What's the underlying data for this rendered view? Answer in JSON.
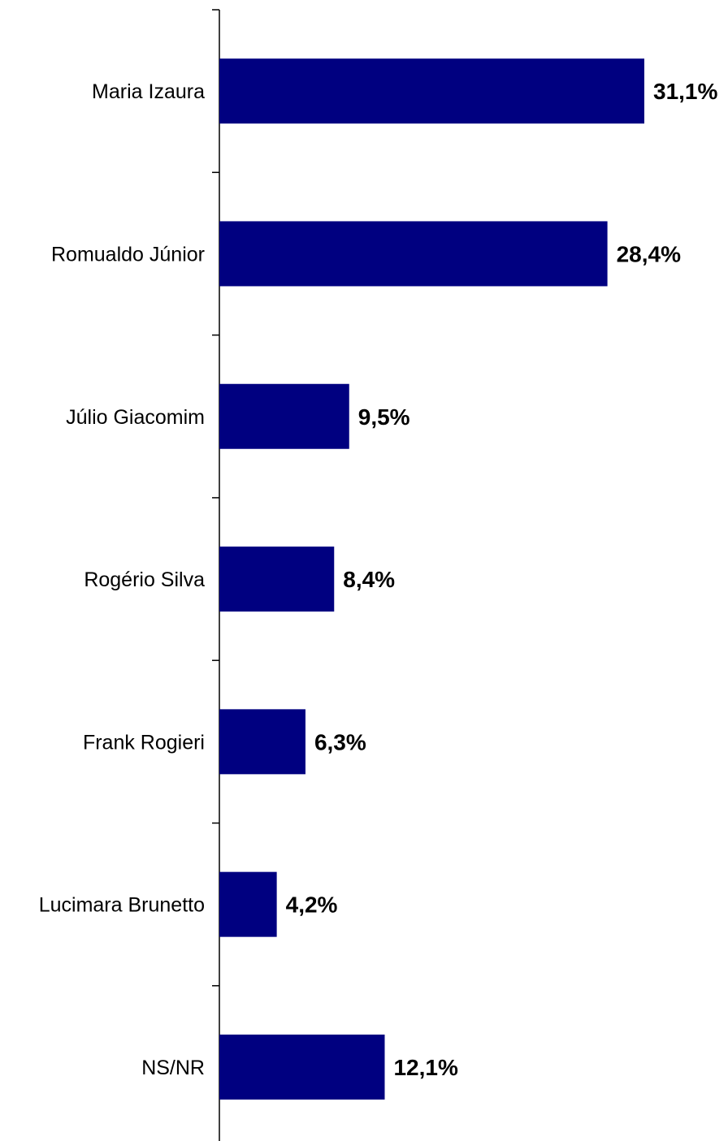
{
  "chart_data": {
    "type": "bar",
    "orientation": "horizontal",
    "categories": [
      "Maria Izaura",
      "Romualdo Júnior",
      "Júlio Giacomim",
      "Rogério Silva",
      "Frank Rogieri",
      "Lucimara Brunetto",
      "NS/NR"
    ],
    "values": [
      31.1,
      28.4,
      9.5,
      8.4,
      6.3,
      4.2,
      12.1
    ],
    "value_labels": [
      "31,1%",
      "28,4%",
      "9,5%",
      "8,4%",
      "6,3%",
      "4,2%",
      "12,1%"
    ],
    "title": "",
    "xlabel": "",
    "ylabel": "",
    "xlim": [
      0,
      31.1
    ],
    "grid": false,
    "legend": "none",
    "bar_color": "#000080"
  }
}
